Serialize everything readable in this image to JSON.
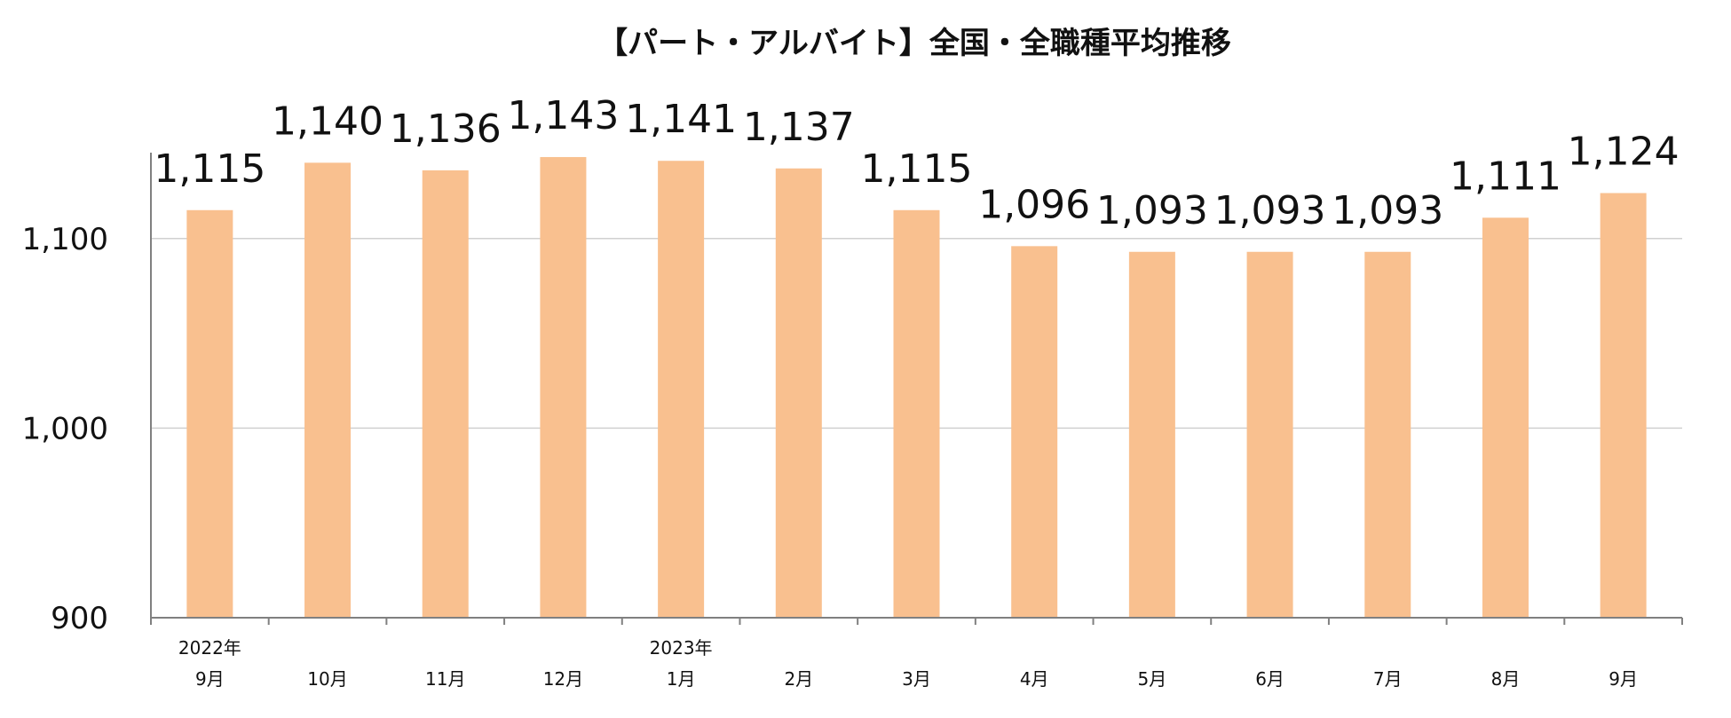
{
  "chart_data": {
    "type": "bar",
    "title": "【パート・アルバイト】全国・全職種平均推移",
    "categories": [
      "9月",
      "10月",
      "11月",
      "12月",
      "1月",
      "2月",
      "3月",
      "4月",
      "5月",
      "6月",
      "7月",
      "8月",
      "9月"
    ],
    "year_labels": [
      "2022年",
      "",
      "",
      "",
      "2023年",
      "",
      "",
      "",
      "",
      "",
      "",
      "",
      ""
    ],
    "values": [
      1115,
      1140,
      1136,
      1143,
      1141,
      1137,
      1115,
      1096,
      1093,
      1093,
      1093,
      1111,
      1124
    ],
    "data_labels": [
      "1,115",
      "1,140",
      "1,136",
      "1,143",
      "1,141",
      "1,137",
      "1,115",
      "1,096",
      "1,093",
      "1,093",
      "1,093",
      "1,111",
      "1,124"
    ],
    "yticks": [
      900,
      1000,
      1100
    ],
    "ytick_labels": [
      "900",
      "1,000",
      "1,100"
    ],
    "ylim": [
      900,
      1150
    ],
    "grid": true,
    "xlabel": "",
    "ylabel": "",
    "bar_color": "#F9C08F",
    "grid_color": "#D0D0D0",
    "axis_color": "#808080"
  }
}
